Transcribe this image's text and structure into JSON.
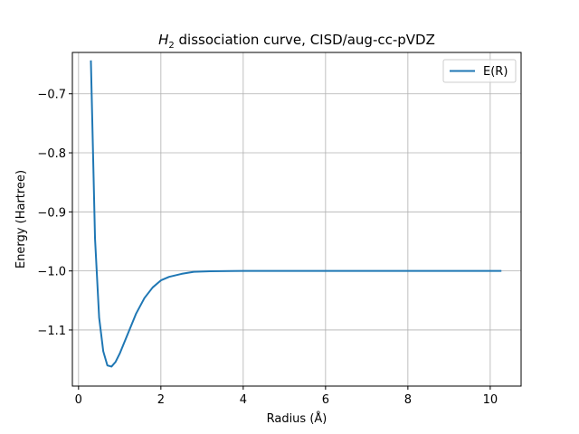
{
  "chart_data": {
    "type": "line",
    "title_molecule": "H",
    "title_subscript": "2",
    "title_rest": " dissociation curve,  CISD/aug-cc-pVDZ",
    "xlabel": "Radius (Å)",
    "ylabel": "Energy (Hartree)",
    "xlim": [
      -0.15,
      10.75
    ],
    "ylim": [
      -1.195,
      -0.63
    ],
    "xticks": [
      0,
      2,
      4,
      6,
      8,
      10
    ],
    "xtick_labels": [
      "0",
      "2",
      "4",
      "6",
      "8",
      "10"
    ],
    "yticks": [
      -0.7,
      -0.8,
      -0.9,
      -1.0,
      -1.1
    ],
    "ytick_labels": [
      "−0.7",
      "−0.8",
      "−0.9",
      "−1.0",
      "−1.1"
    ],
    "grid": true,
    "legend_position": "top-right",
    "series": [
      {
        "name": "E(R)",
        "color": "#1f77b4",
        "x": [
          0.3,
          0.4,
          0.5,
          0.6,
          0.7,
          0.8,
          0.9,
          1.0,
          1.2,
          1.4,
          1.6,
          1.8,
          2.0,
          2.2,
          2.5,
          2.8,
          3.2,
          4.0,
          5.0,
          6.0,
          7.0,
          8.0,
          9.0,
          10.25
        ],
        "y": [
          -0.645,
          -0.945,
          -1.079,
          -1.136,
          -1.16,
          -1.162,
          -1.154,
          -1.14,
          -1.106,
          -1.072,
          -1.046,
          -1.028,
          -1.016,
          -1.01,
          -1.005,
          -1.0015,
          -1.0005,
          -1.0,
          -1.0,
          -1.0,
          -1.0,
          -1.0,
          -1.0,
          -1.0
        ]
      }
    ]
  }
}
